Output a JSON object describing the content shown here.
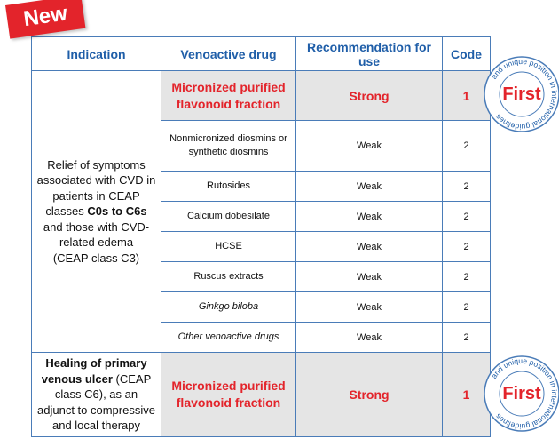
{
  "badge": {
    "label": "New"
  },
  "headers": {
    "indication": "Indication",
    "drug": "Venoactive drug",
    "recommendation": "Recommendation for use",
    "code": "Code"
  },
  "section1": {
    "ind_a": "Relief of symptoms associated with CVD in patients in CEAP classes ",
    "ind_bold": "C0s to C6s",
    "ind_b": " and those with CVD-related edema",
    "ind_c": "(CEAP class C3)",
    "rows": [
      {
        "drug": "Micronized purified flavonoid fraction",
        "rec": "Strong",
        "code": "1"
      },
      {
        "drug": "Nonmicronized diosmins or synthetic diosmins",
        "rec": "Weak",
        "code": "2"
      },
      {
        "drug": "Rutosides",
        "rec": "Weak",
        "code": "2"
      },
      {
        "drug": "Calcium dobesilate",
        "rec": "Weak",
        "code": "2"
      },
      {
        "drug": "HCSE",
        "rec": "Weak",
        "code": "2"
      },
      {
        "drug": "Ruscus extracts",
        "rec": "Weak",
        "code": "2"
      },
      {
        "drug": "Ginkgo biloba",
        "rec": "Weak",
        "code": "2"
      },
      {
        "drug": "Other venoactive drugs",
        "rec": "Weak",
        "code": "2"
      }
    ]
  },
  "section2": {
    "ind_bold": "Healing of primary venous ulcer",
    "ind_rest": " (CEAP class C6), as an adjunct to compressive and local therapy",
    "drug": "Micronized purified flavonoid fraction",
    "rec": "Strong",
    "code": "1"
  },
  "seal": {
    "word": "First",
    "ring_text": "and unique position in international guidelines"
  },
  "colors": {
    "accent_red": "#e3242b",
    "header_blue": "#1f5ea8",
    "border_blue": "#4a7cb8",
    "highlight_gray": "#e5e5e5"
  }
}
